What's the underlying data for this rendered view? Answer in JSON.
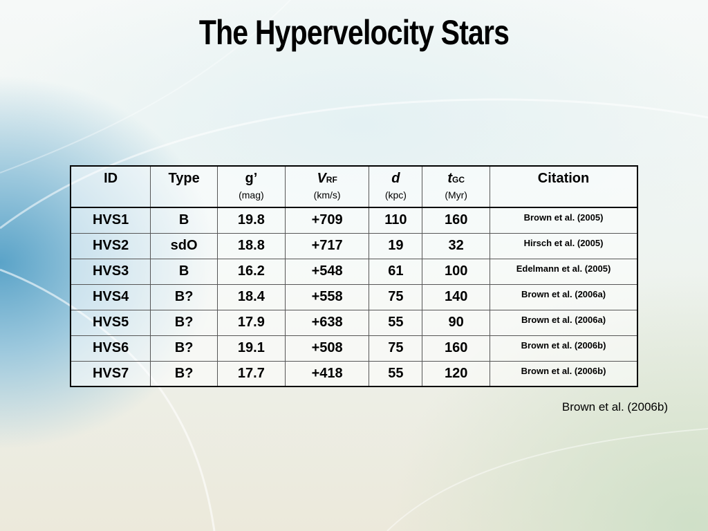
{
  "slide": {
    "title": "The Hypervelocity Stars",
    "reference": "Brown et al. (2006b)"
  },
  "table": {
    "headers": {
      "id": "ID",
      "type": "Type",
      "g": {
        "label": "g’",
        "unit": "(mag)"
      },
      "v": {
        "label": "V",
        "sub": "RF",
        "unit": "(km/s)"
      },
      "d": {
        "label": "d",
        "unit": "(kpc)"
      },
      "t": {
        "label": "t",
        "sub": "GC",
        "unit": "(Myr)"
      },
      "citation": "Citation"
    },
    "rows": [
      {
        "id": "HVS1",
        "type": "B",
        "g": "19.8",
        "v": "+709",
        "d": "110",
        "t": "160",
        "citation": "Brown et al. (2005)"
      },
      {
        "id": "HVS2",
        "type": "sdO",
        "g": "18.8",
        "v": "+717",
        "d": "19",
        "t": "32",
        "citation": "Hirsch et al. (2005)"
      },
      {
        "id": "HVS3",
        "type": "B",
        "g": "16.2",
        "v": "+548",
        "d": "61",
        "t": "100",
        "citation": "Edelmann et al. (2005)"
      },
      {
        "id": "HVS4",
        "type": "B?",
        "g": "18.4",
        "v": "+558",
        "d": "75",
        "t": "140",
        "citation": "Brown et al. (2006a)"
      },
      {
        "id": "HVS5",
        "type": "B?",
        "g": "17.9",
        "v": "+638",
        "d": "55",
        "t": "90",
        "citation": "Brown et al. (2006a)"
      },
      {
        "id": "HVS6",
        "type": "B?",
        "g": "19.1",
        "v": "+508",
        "d": "75",
        "t": "160",
        "citation": "Brown et al. (2006b)"
      },
      {
        "id": "HVS7",
        "type": "B?",
        "g": "17.7",
        "v": "+418",
        "d": "55",
        "t": "120",
        "citation": "Brown et al. (2006b)"
      }
    ]
  }
}
